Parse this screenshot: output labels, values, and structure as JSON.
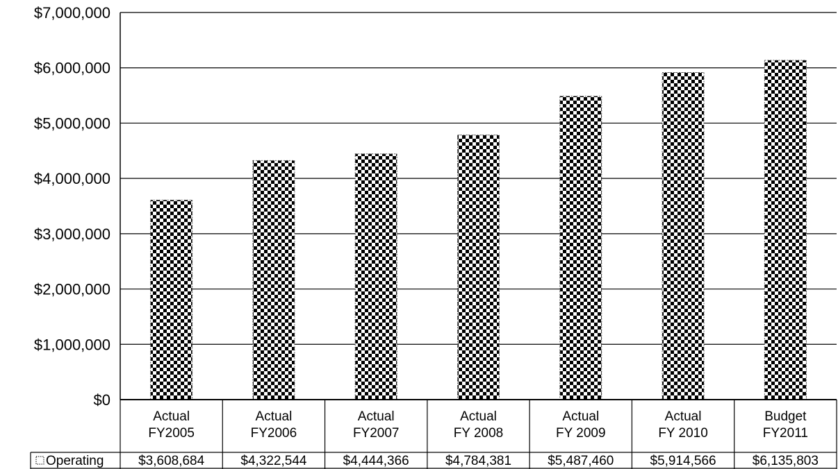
{
  "chart_data": {
    "type": "bar",
    "categories": [
      [
        "Actual",
        "FY2005"
      ],
      [
        "Actual",
        "FY2006"
      ],
      [
        "Actual",
        "FY2007"
      ],
      [
        "Actual",
        "FY 2008"
      ],
      [
        "Actual",
        "FY 2009"
      ],
      [
        "Actual",
        "FY 2010"
      ],
      [
        "Budget",
        "FY2011"
      ]
    ],
    "series": [
      {
        "name": "Operating",
        "values": [
          3608684,
          4322544,
          4444366,
          4784381,
          5487460,
          5914566,
          6135803
        ],
        "value_labels": [
          "$3,608,684",
          "$4,322,544",
          "$4,444,366",
          "$4,784,381",
          "$5,487,460",
          "$5,914,566",
          "$6,135,803"
        ]
      }
    ],
    "ylim": [
      0,
      7000000
    ],
    "yticks": [
      0,
      1000000,
      2000000,
      3000000,
      4000000,
      5000000,
      6000000,
      7000000
    ],
    "ytick_labels": [
      "$0",
      "$1,000,000",
      "$2,000,000",
      "$3,000,000",
      "$4,000,000",
      "$5,000,000",
      "$6,000,000",
      "$7,000,000"
    ],
    "grid": true,
    "legend_placement": "data-table-left",
    "colors": {
      "bar_fill_dark": "#000000",
      "bar_fill_light": "#ffffff",
      "gridline": "#000000",
      "text": "#000000"
    },
    "title": "",
    "xlabel": "",
    "ylabel": ""
  }
}
